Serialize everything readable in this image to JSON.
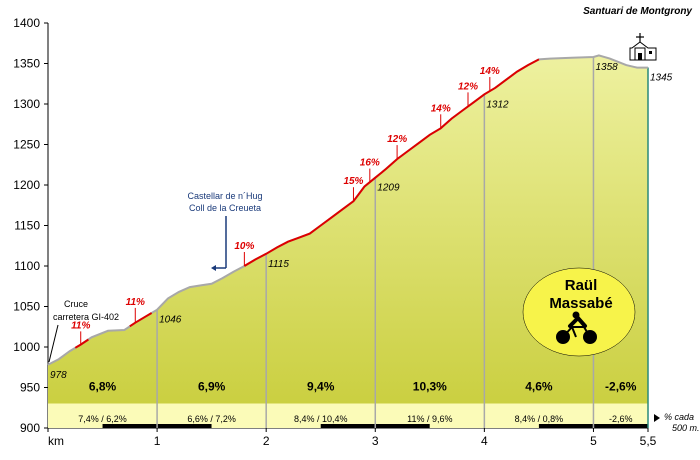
{
  "chart_data": {
    "type": "area",
    "title": "Santuari de Montgrony",
    "xlabel": "km",
    "ylim": [
      900,
      1400
    ],
    "xlim": [
      0,
      5.5
    ],
    "y_ticks": [
      900,
      950,
      1000,
      1050,
      1100,
      1150,
      1200,
      1250,
      1300,
      1350,
      1400
    ],
    "x_ticks": [
      {
        "v": 0,
        "label": "km"
      },
      {
        "v": 1,
        "label": "1"
      },
      {
        "v": 2,
        "label": "2"
      },
      {
        "v": 3,
        "label": "3"
      },
      {
        "v": 4,
        "label": "4"
      },
      {
        "v": 5,
        "label": "5"
      },
      {
        "v": 5.5,
        "label": "5,5"
      }
    ],
    "profile": [
      [
        0,
        978
      ],
      [
        0.1,
        985
      ],
      [
        0.2,
        995
      ],
      [
        0.3,
        1003
      ],
      [
        0.4,
        1012
      ],
      [
        0.55,
        1020
      ],
      [
        0.7,
        1021
      ],
      [
        0.8,
        1030
      ],
      [
        0.9,
        1038
      ],
      [
        1.0,
        1046
      ],
      [
        1.1,
        1060
      ],
      [
        1.2,
        1068
      ],
      [
        1.3,
        1074
      ],
      [
        1.4,
        1076
      ],
      [
        1.5,
        1078
      ],
      [
        1.6,
        1085
      ],
      [
        1.7,
        1093
      ],
      [
        1.8,
        1100
      ],
      [
        1.9,
        1108
      ],
      [
        2.0,
        1115
      ],
      [
        2.1,
        1123
      ],
      [
        2.2,
        1130
      ],
      [
        2.3,
        1135
      ],
      [
        2.4,
        1140
      ],
      [
        2.5,
        1150
      ],
      [
        2.6,
        1160
      ],
      [
        2.7,
        1170
      ],
      [
        2.8,
        1180
      ],
      [
        2.9,
        1198
      ],
      [
        3.0,
        1209
      ],
      [
        3.1,
        1220
      ],
      [
        3.2,
        1232
      ],
      [
        3.3,
        1242
      ],
      [
        3.4,
        1252
      ],
      [
        3.5,
        1262
      ],
      [
        3.6,
        1270
      ],
      [
        3.7,
        1282
      ],
      [
        3.8,
        1292
      ],
      [
        3.9,
        1302
      ],
      [
        4.0,
        1312
      ],
      [
        4.1,
        1320
      ],
      [
        4.2,
        1330
      ],
      [
        4.3,
        1340
      ],
      [
        4.4,
        1348
      ],
      [
        4.5,
        1355
      ],
      [
        4.6,
        1356
      ],
      [
        4.8,
        1357
      ],
      [
        5.0,
        1358
      ],
      [
        5.05,
        1360
      ],
      [
        5.15,
        1356
      ],
      [
        5.3,
        1348
      ],
      [
        5.4,
        1345
      ],
      [
        5.5,
        1345
      ]
    ],
    "steep_ranges": [
      [
        0.25,
        0.37
      ],
      [
        0.75,
        0.95
      ],
      [
        1.8,
        4.5
      ]
    ],
    "elevation_labels": [
      {
        "x": 0,
        "value": "978"
      },
      {
        "x": 1,
        "value": "1046"
      },
      {
        "x": 2,
        "value": "1115"
      },
      {
        "x": 3,
        "value": "1209"
      },
      {
        "x": 4,
        "value": "1312"
      },
      {
        "x": 5,
        "value": "1358"
      },
      {
        "x": 5.5,
        "value": "1345"
      }
    ],
    "gradient_labels": [
      {
        "x": 0.3,
        "elev": 1002,
        "value": "11%"
      },
      {
        "x": 0.8,
        "elev": 1031,
        "value": "11%"
      },
      {
        "x": 1.8,
        "elev": 1100,
        "value": "10%"
      },
      {
        "x": 2.8,
        "elev": 1180,
        "value": "15%"
      },
      {
        "x": 2.95,
        "elev": 1203,
        "value": "16%"
      },
      {
        "x": 3.2,
        "elev": 1232,
        "value": "12%"
      },
      {
        "x": 3.6,
        "elev": 1270,
        "value": "14%"
      },
      {
        "x": 3.85,
        "elev": 1297,
        "value": "12%"
      },
      {
        "x": 4.05,
        "elev": 1316,
        "value": "14%"
      }
    ],
    "segments": [
      {
        "from": 0,
        "to": 1,
        "avg": "6,8%",
        "detail": "7,4% / 6,2%"
      },
      {
        "from": 1,
        "to": 2,
        "avg": "6,9%",
        "detail": "6,6% / 7,2%"
      },
      {
        "from": 2,
        "to": 3,
        "avg": "9,4%",
        "detail": "8,4% / 10,4%"
      },
      {
        "from": 3,
        "to": 4,
        "avg": "10,3%",
        "detail": "11% / 9,6%"
      },
      {
        "from": 4,
        "to": 5,
        "avg": "4,6%",
        "detail": "8,4% / 0,8%"
      },
      {
        "from": 5,
        "to": 5.5,
        "avg": "-2,6%",
        "detail": "-2,6%"
      }
    ],
    "annotations": {
      "cruce": [
        "Cruce",
        "carretera GI-402"
      ],
      "castellar": [
        "Castellar de n´Hug",
        "Coll de la Creueta"
      ],
      "scale_note": [
        "% cada",
        "500 m."
      ]
    },
    "author": [
      "Raül",
      "Massabé"
    ],
    "colors": {
      "fill_top": "#eef1a0",
      "fill_bottom": "#c8cd3a",
      "band": "#fbfbb8",
      "outline": "#a8a8a8",
      "steep": "#dd0000",
      "gradient_text": "#dd0000",
      "badge": "#f7f34a",
      "castellar": "#1a3a7a",
      "end_line": "#2a8a7a"
    }
  }
}
